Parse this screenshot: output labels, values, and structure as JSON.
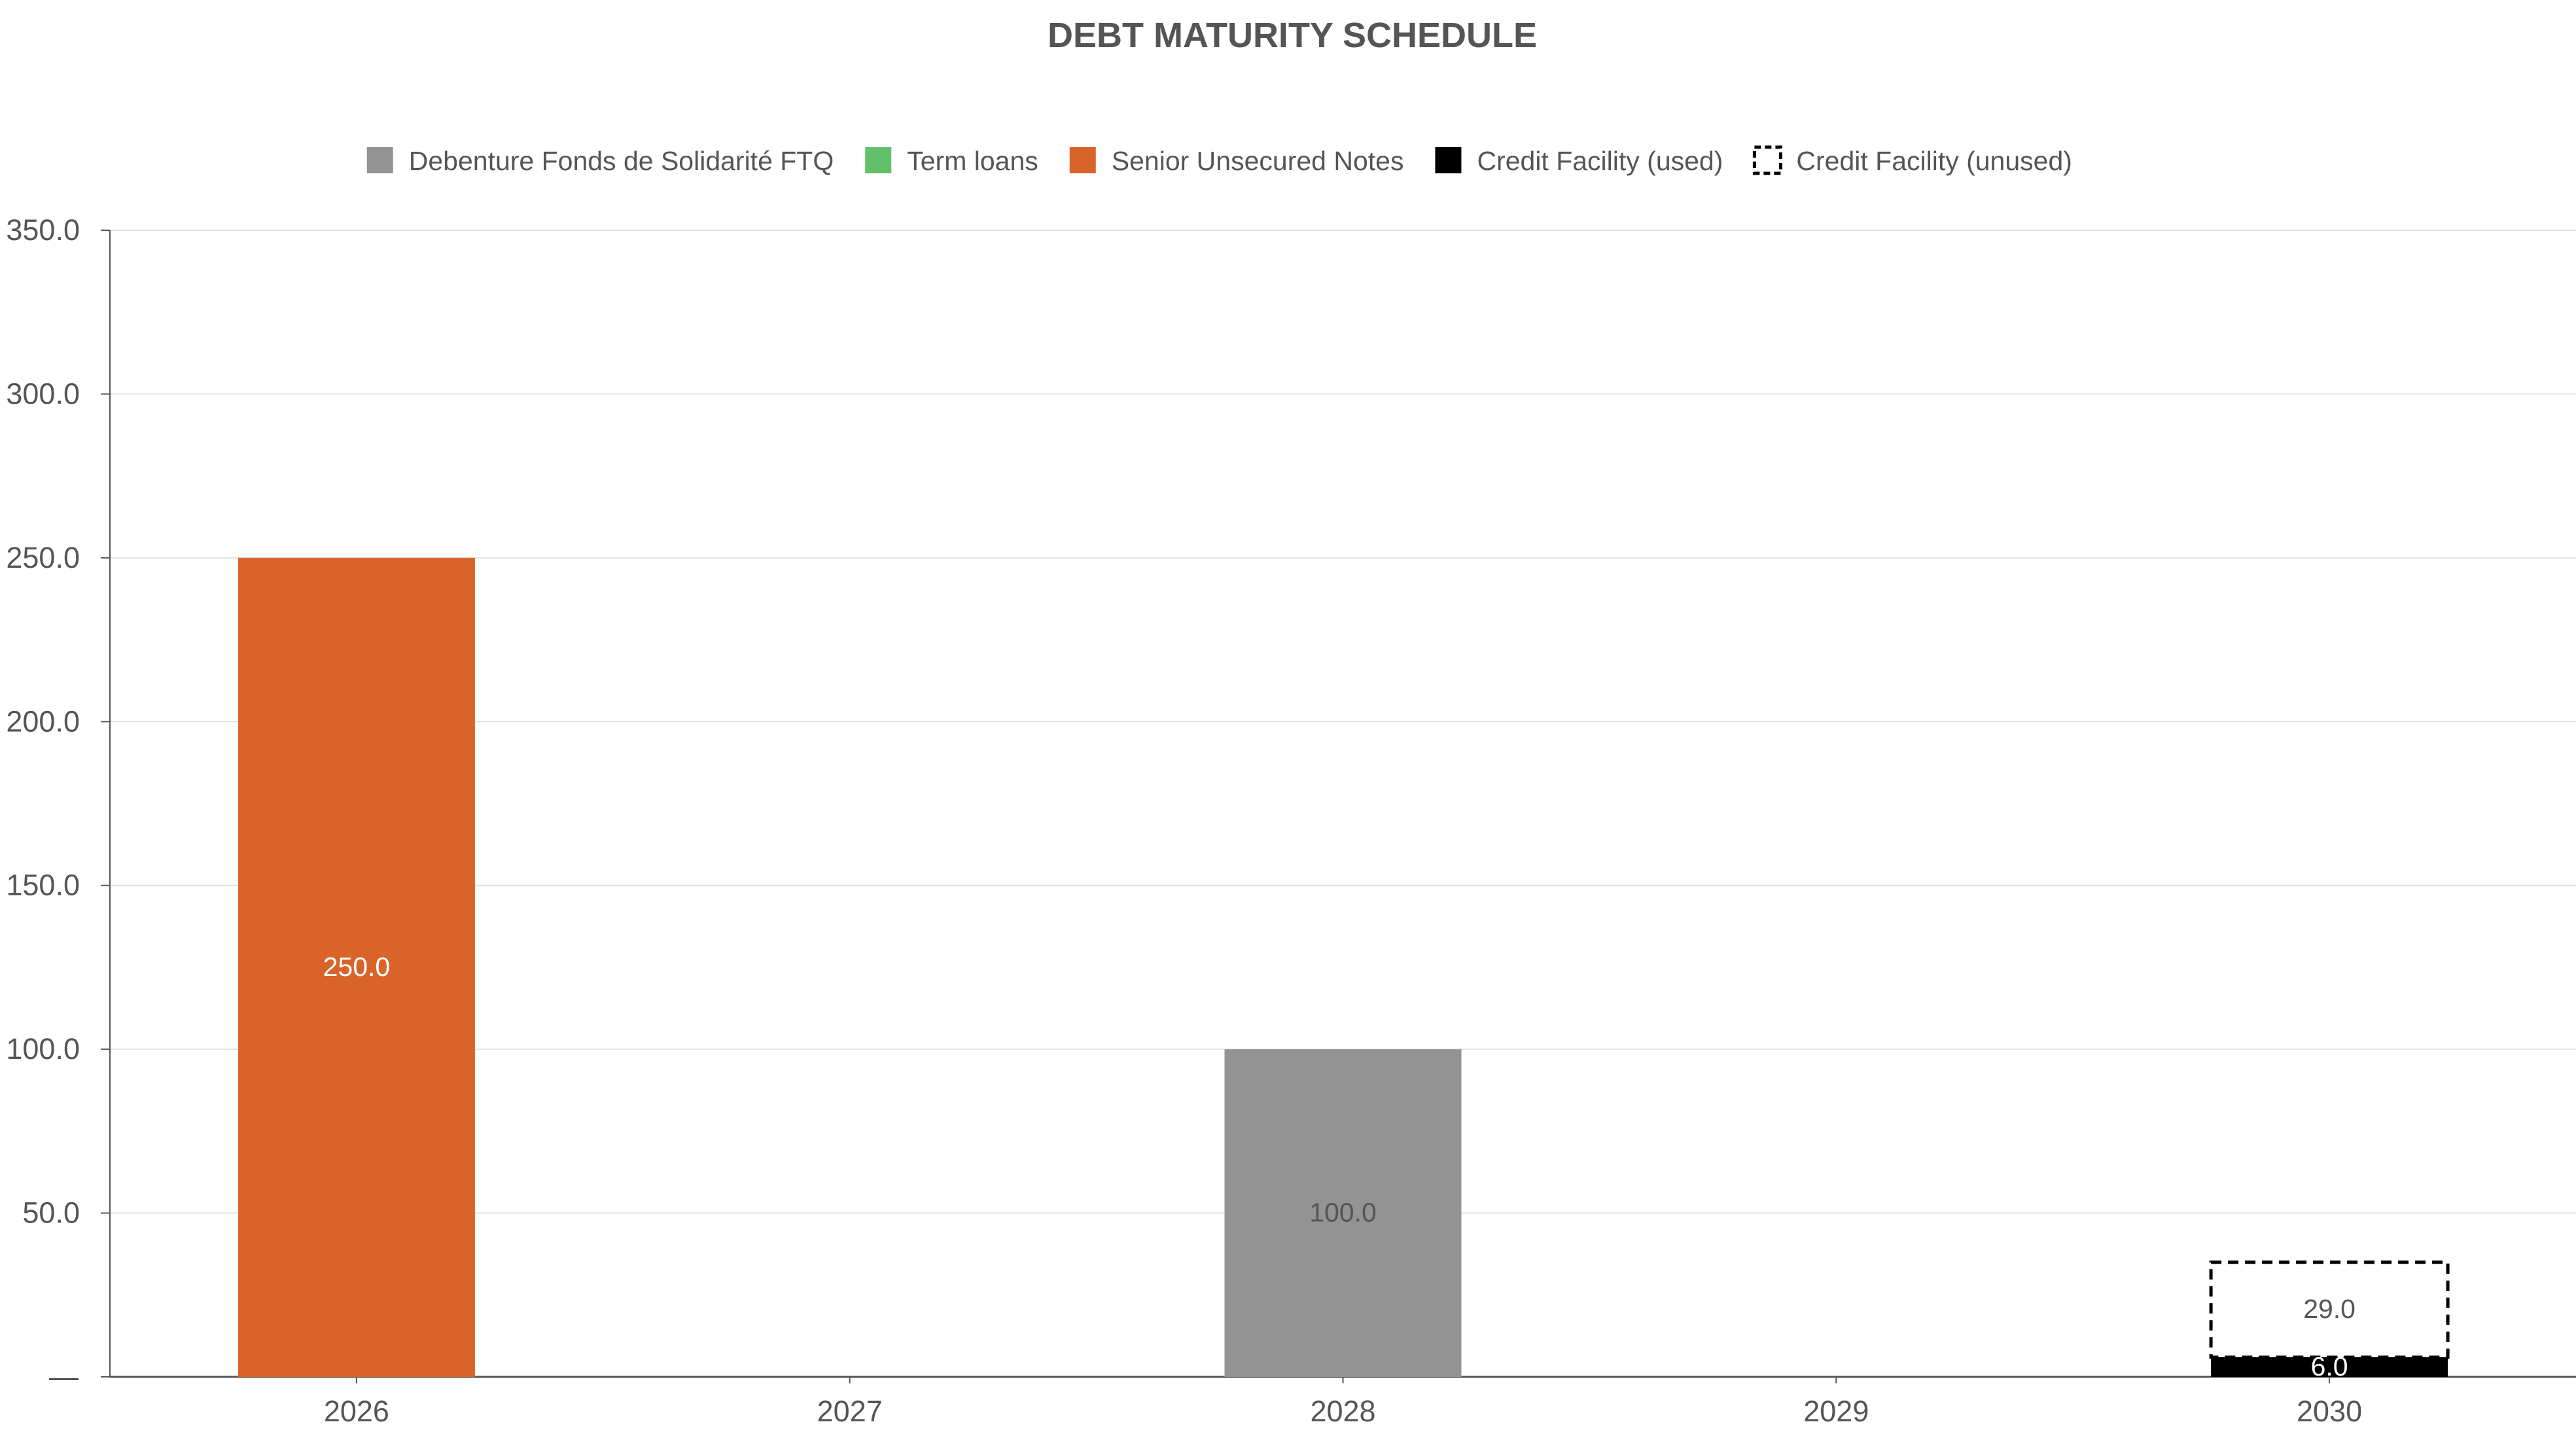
{
  "chart_data": {
    "type": "bar",
    "stacked": true,
    "title": "DEBT MATURITY SCHEDULE",
    "xlabel": "",
    "ylabel": "",
    "categories": [
      "2026",
      "2027",
      "2028",
      "2029",
      "2030"
    ],
    "ylim": [
      0,
      350
    ],
    "yticks": [
      "—",
      "50.0",
      "100.0",
      "150.0",
      "200.0",
      "250.0",
      "300.0",
      "350.0"
    ],
    "grid": true,
    "legend_position": "top-center",
    "series": [
      {
        "name": "Debenture Fonds de Solidarité FTQ",
        "color": "#939393",
        "style": "solid",
        "label_color": "#555555",
        "values": [
          0,
          0,
          100,
          0,
          0
        ],
        "labels": [
          "",
          "",
          "100.0",
          "",
          ""
        ]
      },
      {
        "name": "Term loans",
        "color": "#62c06b",
        "style": "solid",
        "label_color": "#ffffff",
        "values": [
          0,
          0,
          0,
          0,
          0
        ],
        "labels": [
          "",
          "",
          "",
          "",
          ""
        ]
      },
      {
        "name": "Senior Unsecured Notes",
        "color": "#d96429",
        "style": "solid",
        "label_color": "#ffffff",
        "values": [
          250,
          0,
          0,
          0,
          0
        ],
        "labels": [
          "250.0",
          "",
          "",
          "",
          ""
        ]
      },
      {
        "name": "Credit Facility (used)",
        "color": "#000000",
        "style": "solid",
        "label_color": "#ffffff",
        "values": [
          0,
          0,
          0,
          0,
          6
        ],
        "labels": [
          "",
          "",
          "",
          "",
          "6.0"
        ]
      },
      {
        "name": "Credit Facility (unused)",
        "color": "#000000",
        "style": "dashed",
        "label_color": "#555555",
        "values": [
          0,
          0,
          0,
          0,
          29
        ],
        "labels": [
          "",
          "",
          "",
          "",
          "29.0"
        ]
      }
    ]
  }
}
